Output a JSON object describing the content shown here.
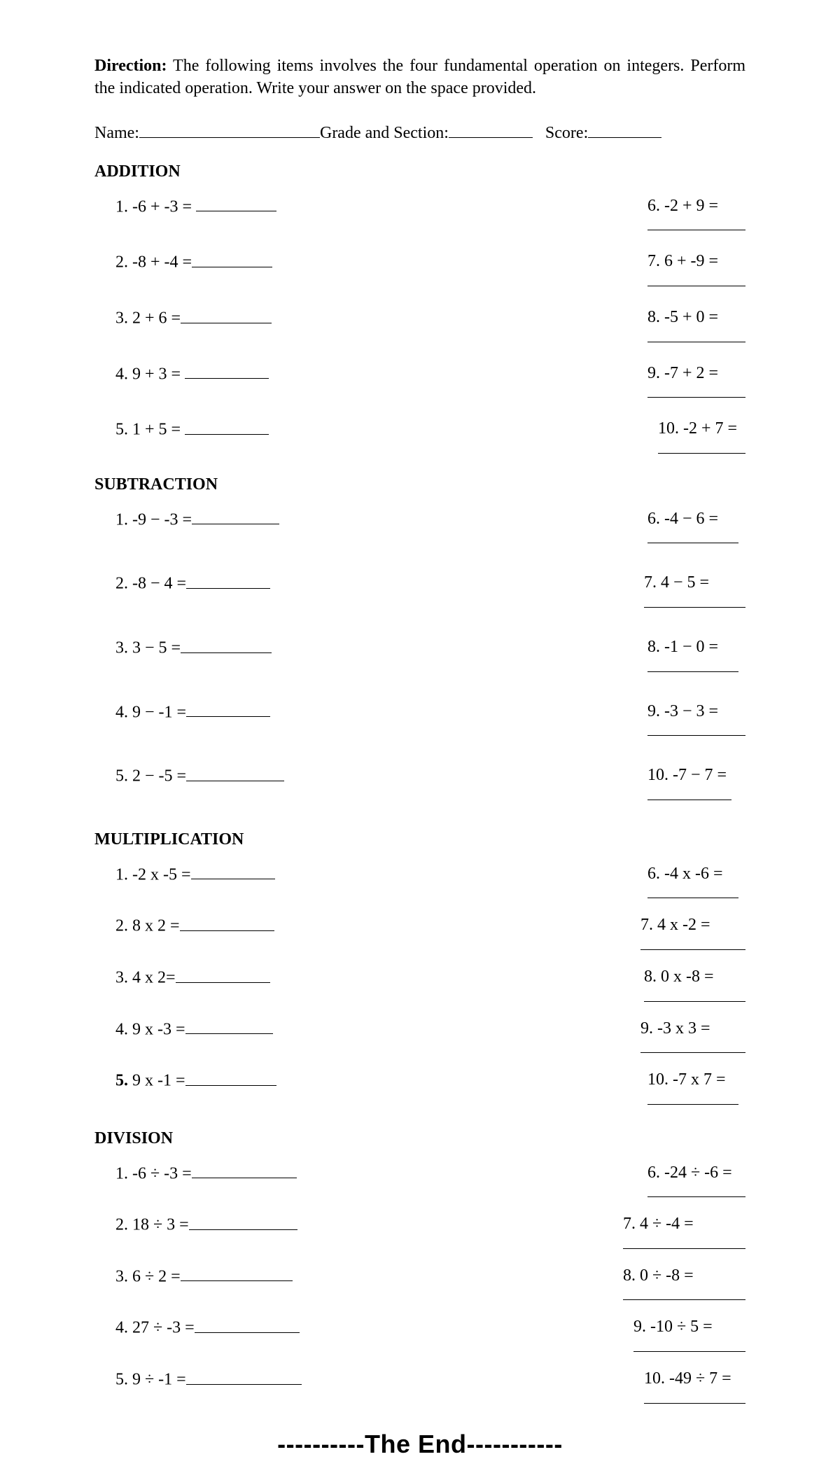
{
  "direction_label": "Direction:",
  "direction_text": " The following items involves the four fundamental operation on integers. Perform the indicated operation. Write your answer on the space provided.",
  "info": {
    "name_label": "Name:",
    "grade_label": "Grade and Section:",
    "score_label": "Score:",
    "name_line_width": 258,
    "grade_line_width": 120,
    "score_line_width": 105
  },
  "sections": {
    "addition": {
      "title": "ADDITION",
      "left": [
        {
          "n": "1.",
          "expr": " -6 + -3 = ",
          "ans_w": 115
        },
        {
          "n": "2.",
          "expr": "  -8 + -4 =",
          "ans_w": 115
        },
        {
          "n": "3.",
          "expr": "  2 + 6 =",
          "ans_w": 130
        },
        {
          "n": "4.",
          "expr": " 9 + 3 = ",
          "ans_w": 120
        },
        {
          "n": "5.",
          "expr": "  1 + 5 = ",
          "ans_w": 120
        }
      ],
      "right": [
        {
          "n": "6.",
          "expr": " -2 + 9 =",
          "ans_w": 140
        },
        {
          "n": "7.",
          "expr": " 6 + -9 =",
          "ans_w": 140
        },
        {
          "n": "8.",
          "expr": " -5 + 0 =",
          "ans_w": 140
        },
        {
          "n": "9.",
          "expr": " -7 + 2 =",
          "ans_w": 140
        },
        {
          "n": "10.",
          "expr": " -2 + 7 =",
          "ans_w": 125
        }
      ]
    },
    "subtraction": {
      "title": "SUBTRACTION",
      "left": [
        {
          "n": "1.",
          "expr": " -9  − -3 =",
          "ans_w": 125
        },
        {
          "n": "2.",
          "expr": " -8  −  4 =",
          "ans_w": 120
        },
        {
          "n": "3.",
          "expr": " 3  −  5 =",
          "ans_w": 130
        },
        {
          "n": "4.",
          "expr": " 9  −  -1 =",
          "ans_w": 120
        },
        {
          "n": "5.",
          "expr": " 2  −  -5 =",
          "ans_w": 140
        }
      ],
      "right": [
        {
          "n": "6.",
          "expr": " -4  −  6 =",
          "ans_w": 130
        },
        {
          "n": "7.",
          "expr": " 4  − 5 =",
          "ans_w": 145
        },
        {
          "n": "8.",
          "expr": " -1  −  0 =",
          "ans_w": 130
        },
        {
          "n": "9.",
          "expr": " -3  −  3 =",
          "ans_w": 140
        },
        {
          "n": "10.",
          "expr": " -7  −  7 =",
          "ans_w": 120
        }
      ]
    },
    "multiplication": {
      "title": "MULTIPLICATION",
      "left": [
        {
          "n": "1.",
          "expr": " -2  x  -5 =",
          "ans_w": 120,
          "bold": false
        },
        {
          "n": "2.",
          "expr": " 8  x  2 =",
          "ans_w": 135,
          "bold": false
        },
        {
          "n": "3.",
          "expr": " 4  x  2=",
          "ans_w": 135,
          "bold": false
        },
        {
          "n": "4.",
          "expr": " 9  x  -3 =",
          "ans_w": 125,
          "bold": false
        },
        {
          "n": "5.",
          "expr": " 9  x  -1 =",
          "ans_w": 130,
          "bold": true
        }
      ],
      "right": [
        {
          "n": "6.",
          "expr": " -4  x  -6 =",
          "ans_w": 130
        },
        {
          "n": "7.",
          "expr": " 4  x  -2 =",
          "ans_w": 150
        },
        {
          "n": "8.",
          "expr": " 0  x  -8 =",
          "ans_w": 145
        },
        {
          "n": "9.",
          "expr": " -3  x  3 =",
          "ans_w": 150
        },
        {
          "n": "10.",
          "expr": " -7  x  7 =",
          "ans_w": 130
        }
      ]
    },
    "division": {
      "title": "DIVISION",
      "left": [
        {
          "n": "1.",
          "expr": " -6 ÷ -3 =",
          "ans_w": 150
        },
        {
          "n": "2.",
          "expr": " 18 ÷ 3 =",
          "ans_w": 155
        },
        {
          "n": "3.",
          "expr": "  6 ÷ 2 =",
          "ans_w": 160
        },
        {
          "n": "4.",
          "expr": " 27 ÷ -3 =",
          "ans_w": 150
        },
        {
          "n": "5.",
          "expr": " 9 ÷ -1 =",
          "ans_w": 165
        }
      ],
      "right": [
        {
          "n": "6.",
          "expr": " -24 ÷ -6 =",
          "ans_w": 140
        },
        {
          "n": "7.",
          "expr": " 4 ÷ -4 =",
          "ans_w": 175
        },
        {
          "n": "8.",
          "expr": " 0 ÷ -8 =",
          "ans_w": 175
        },
        {
          "n": "9.",
          "expr": " -10 ÷ 5 =",
          "ans_w": 160
        },
        {
          "n": "10.",
          "expr": " -49 ÷ 7 =",
          "ans_w": 145
        }
      ]
    }
  },
  "the_end": "----------The End-----------"
}
